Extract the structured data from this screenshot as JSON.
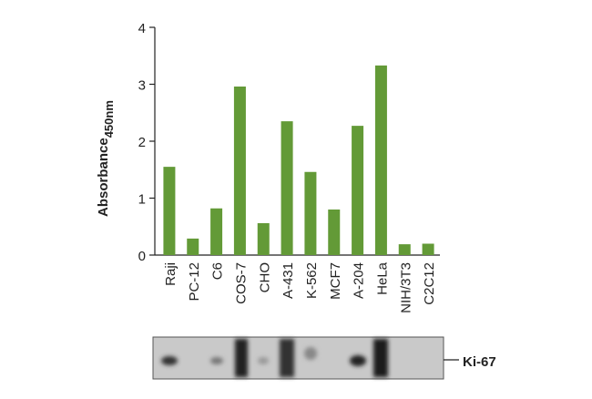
{
  "chart_data": {
    "type": "bar",
    "ylabel": "Absorbance",
    "ylabel_subscript": "450nm",
    "categories": [
      "Raji",
      "PC-12",
      "C6",
      "COS-7",
      "CHO",
      "A-431",
      "K-562",
      "MCF7",
      "A-204",
      "HeLa",
      "NIH/3T3",
      "C2C12"
    ],
    "values": [
      1.55,
      0.29,
      0.82,
      2.96,
      0.56,
      2.35,
      1.46,
      0.8,
      2.27,
      3.33,
      0.19,
      0.2
    ],
    "color": "#639a37",
    "ylim": [
      0,
      4
    ],
    "yticks": [
      0,
      1,
      2,
      3,
      4
    ],
    "grid": false,
    "blot_label": "Ki-67"
  }
}
